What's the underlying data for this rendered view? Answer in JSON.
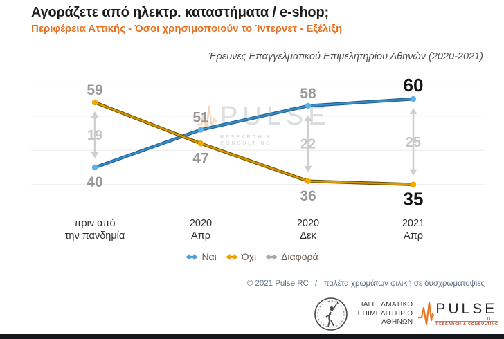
{
  "header": {
    "title": "Αγοράζετε από ηλεκτρ. καταστήματα / e-shop;",
    "subtitle": "Περιφέρεια Αττικής - Όσοι χρησιμοποιούν το Ίντερνετ - Εξέλιξη",
    "note": "Έρευνες Επαγγελματικού Επιμελητηρίου Αθηνών (2020-2021)"
  },
  "chart_data": {
    "type": "line",
    "title": "Αγοράζετε από ηλεκτρ. καταστήματα / e-shop;",
    "subtitle": "Περιφέρεια Αττικής - Όσοι χρησιμοποιούν το Ίντερνετ - Εξέλιξη",
    "categories": [
      [
        "πριν από",
        "την πανδημία"
      ],
      [
        "2020",
        "Απρ"
      ],
      [
        "2020",
        "Δεκ"
      ],
      [
        "2021",
        "Απρ"
      ]
    ],
    "series": [
      {
        "name": "Ναι",
        "values": [
          40,
          51,
          58,
          60
        ],
        "color": "#3a8ec9",
        "edge_color": "#1d5f91",
        "marker_color": "#5fb0e8"
      },
      {
        "name": "Όχι",
        "values": [
          59,
          47,
          36,
          35
        ],
        "color": "#d79b00",
        "edge_color": "#6e4f00",
        "marker_color": "#f2a800"
      }
    ],
    "difference": {
      "name": "Διαφορά",
      "values": [
        19,
        null,
        22,
        25
      ],
      "color": "#cfcfcf",
      "label_color": "#c6c6c6"
    },
    "gridlines": [
      35,
      45,
      55,
      65
    ],
    "ylim": [
      30,
      68
    ],
    "grid": true,
    "legend_position": "bottom",
    "value_label_color": "#979797",
    "final_value_label_color": "#141414",
    "axis_label_color": "#2e2e2e"
  },
  "legend": {
    "items": [
      {
        "label": "Ναι",
        "color": "#4da0d6"
      },
      {
        "label": "Όχι",
        "color": "#e9a200"
      },
      {
        "label": "Διαφορά",
        "color": "#a9a9a9"
      }
    ]
  },
  "watermark": {
    "text": "PULSE",
    "subtext": "RESEARCH & CONSULTING"
  },
  "footer": {
    "copyright": "© 2021 Pulse RC",
    "separator": "/",
    "palette_note": "παλέτα χρωμάτων φιλική σε δυσχρωματοψίες"
  },
  "logos": {
    "chamber": {
      "line1": "ΕΠΑΓΓΕΛΜΑΤΙΚΟ",
      "line2": "ΕΠΙΜΕΛΗΤΗΡΙΟ",
      "line3": "ΑΘΗΝΩΝ"
    },
    "pulse": {
      "name": "PULSE",
      "tagline": "RESEARCH & CONSULTING"
    }
  },
  "colors": {
    "accent_orange": "#e8701f",
    "brand_pulse_orange": "#e87722",
    "bottom_bar": "#14171c"
  }
}
